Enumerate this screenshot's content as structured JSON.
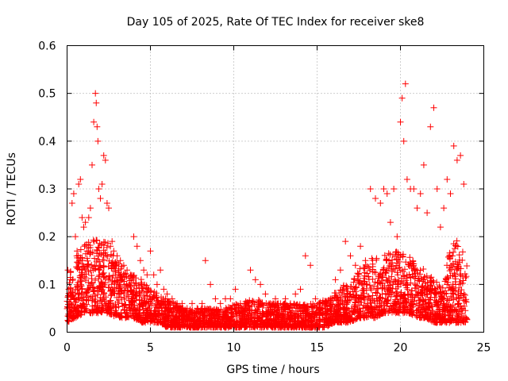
{
  "chart_data": {
    "type": "scatter",
    "title": "Day 105 of 2025, Rate Of TEC Index for receiver ske8",
    "xlabel": "GPS time / hours",
    "ylabel": "ROTI / TECUs",
    "xlim": [
      0,
      25
    ],
    "ylim": [
      0,
      0.6
    ],
    "xticks": [
      0,
      5,
      10,
      15,
      20,
      25
    ],
    "xtick_labels": [
      "0",
      "5",
      "10",
      "15",
      "20",
      "25"
    ],
    "yticks": [
      0,
      0.1,
      0.2,
      0.3,
      0.4,
      0.5,
      0.6
    ],
    "ytick_labels": [
      "0",
      "0.1",
      "0.2",
      "0.3",
      "0.4",
      "0.5",
      "0.6"
    ],
    "grid": true,
    "marker": "+",
    "color": "#ff0000",
    "series": [
      {
        "name": "ROTI",
        "x": [
          0.05,
          0.1,
          0.2,
          0.3,
          0.4,
          0.5,
          0.6,
          0.7,
          0.8,
          0.9,
          1.0,
          1.1,
          1.2,
          1.3,
          1.4,
          1.5,
          1.6,
          1.7,
          1.75,
          1.8,
          1.85,
          1.9,
          2.0,
          2.1,
          2.2,
          2.3,
          2.4,
          2.5,
          2.6,
          2.7,
          2.8,
          3.0,
          3.2,
          3.4,
          3.6,
          3.8,
          4.0,
          4.2,
          4.4,
          4.6,
          4.8,
          5.0,
          5.2,
          5.4,
          5.6,
          5.8,
          6.0,
          6.3,
          6.6,
          6.9,
          7.2,
          7.5,
          7.8,
          8.1,
          8.3,
          8.6,
          8.9,
          9.2,
          9.5,
          9.8,
          10.1,
          10.4,
          10.7,
          11.0,
          11.3,
          11.6,
          11.9,
          12.2,
          12.5,
          12.8,
          13.1,
          13.4,
          13.7,
          14.0,
          14.3,
          14.6,
          14.9,
          15.2,
          15.5,
          15.8,
          16.1,
          16.4,
          16.7,
          17.0,
          17.3,
          17.6,
          17.9,
          18.2,
          18.5,
          18.8,
          19.0,
          19.2,
          19.4,
          19.6,
          19.8,
          20.0,
          20.1,
          20.2,
          20.3,
          20.4,
          20.6,
          20.8,
          21.0,
          21.2,
          21.4,
          21.6,
          21.8,
          22.0,
          22.2,
          22.4,
          22.6,
          22.8,
          23.0,
          23.2,
          23.4,
          23.6,
          23.8
        ],
        "y": [
          0.13,
          0.09,
          0.11,
          0.27,
          0.29,
          0.2,
          0.17,
          0.31,
          0.32,
          0.24,
          0.22,
          0.23,
          0.17,
          0.24,
          0.26,
          0.35,
          0.44,
          0.5,
          0.48,
          0.43,
          0.4,
          0.3,
          0.28,
          0.31,
          0.37,
          0.36,
          0.27,
          0.26,
          0.18,
          0.19,
          0.17,
          0.16,
          0.15,
          0.14,
          0.13,
          0.12,
          0.2,
          0.18,
          0.15,
          0.13,
          0.12,
          0.17,
          0.12,
          0.1,
          0.13,
          0.09,
          0.08,
          0.07,
          0.06,
          0.06,
          0.05,
          0.06,
          0.05,
          0.06,
          0.15,
          0.1,
          0.07,
          0.06,
          0.07,
          0.07,
          0.09,
          0.06,
          0.06,
          0.13,
          0.11,
          0.1,
          0.08,
          0.06,
          0.07,
          0.06,
          0.07,
          0.06,
          0.08,
          0.09,
          0.16,
          0.14,
          0.07,
          0.06,
          0.06,
          0.07,
          0.11,
          0.13,
          0.19,
          0.16,
          0.14,
          0.18,
          0.15,
          0.3,
          0.28,
          0.27,
          0.3,
          0.29,
          0.23,
          0.3,
          0.2,
          0.44,
          0.49,
          0.4,
          0.52,
          0.32,
          0.3,
          0.3,
          0.26,
          0.29,
          0.35,
          0.25,
          0.43,
          0.47,
          0.3,
          0.22,
          0.26,
          0.32,
          0.29,
          0.39,
          0.36,
          0.37,
          0.31
        ],
        "envelope": {
          "hours": [
            0,
            0.5,
            1,
            1.5,
            2,
            2.5,
            3,
            3.5,
            4,
            4.5,
            5,
            5.5,
            6,
            6.5,
            7,
            7.5,
            8,
            8.5,
            9,
            9.5,
            10,
            10.5,
            11,
            11.5,
            12,
            12.5,
            13,
            13.5,
            14,
            14.5,
            15,
            15.5,
            16,
            16.5,
            17,
            17.5,
            18,
            18.5,
            19,
            19.5,
            20,
            20.5,
            21,
            21.5,
            22,
            22.5,
            23,
            23.5,
            24
          ],
          "upper": [
            0.12,
            0.16,
            0.18,
            0.2,
            0.2,
            0.19,
            0.15,
            0.13,
            0.12,
            0.11,
            0.09,
            0.08,
            0.07,
            0.06,
            0.05,
            0.05,
            0.05,
            0.05,
            0.05,
            0.05,
            0.06,
            0.06,
            0.07,
            0.07,
            0.06,
            0.06,
            0.06,
            0.06,
            0.06,
            0.06,
            0.06,
            0.07,
            0.08,
            0.1,
            0.1,
            0.13,
            0.15,
            0.16,
            0.16,
            0.17,
            0.17,
            0.16,
            0.14,
            0.13,
            0.11,
            0.1,
            0.18,
            0.2,
            0.15
          ],
          "lower": [
            0.02,
            0.03,
            0.04,
            0.04,
            0.04,
            0.04,
            0.03,
            0.03,
            0.03,
            0.02,
            0.02,
            0.02,
            0.01,
            0.01,
            0.01,
            0.01,
            0.01,
            0.01,
            0.01,
            0.01,
            0.01,
            0.01,
            0.01,
            0.01,
            0.01,
            0.01,
            0.01,
            0.01,
            0.01,
            0.01,
            0.01,
            0.01,
            0.02,
            0.02,
            0.02,
            0.03,
            0.03,
            0.03,
            0.04,
            0.04,
            0.04,
            0.04,
            0.03,
            0.03,
            0.02,
            0.02,
            0.02,
            0.02,
            0.02
          ],
          "points_per_hour": 140
        }
      }
    ]
  }
}
